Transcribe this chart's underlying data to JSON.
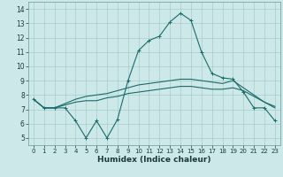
{
  "xlabel": "Humidex (Indice chaleur)",
  "bg_color": "#cce8e8",
  "grid_color": "#aacccc",
  "line_color": "#1a6b6b",
  "x": [
    0,
    1,
    2,
    3,
    4,
    5,
    6,
    7,
    8,
    9,
    10,
    11,
    12,
    13,
    14,
    15,
    16,
    17,
    18,
    19,
    20,
    21,
    22,
    23
  ],
  "line1": [
    7.7,
    7.1,
    7.1,
    7.1,
    6.2,
    5.0,
    6.2,
    5.0,
    6.3,
    9.0,
    11.1,
    11.8,
    12.1,
    13.1,
    13.7,
    13.2,
    11.0,
    9.5,
    9.2,
    9.1,
    8.2,
    7.1,
    7.1,
    6.2
  ],
  "line2": [
    7.7,
    7.1,
    7.1,
    7.3,
    7.5,
    7.6,
    7.6,
    7.8,
    7.9,
    8.1,
    8.2,
    8.3,
    8.4,
    8.5,
    8.6,
    8.6,
    8.5,
    8.4,
    8.4,
    8.5,
    8.3,
    7.9,
    7.5,
    7.2
  ],
  "line3": [
    7.7,
    7.1,
    7.1,
    7.4,
    7.7,
    7.9,
    8.0,
    8.1,
    8.3,
    8.5,
    8.7,
    8.8,
    8.9,
    9.0,
    9.1,
    9.1,
    9.0,
    8.9,
    8.8,
    9.0,
    8.5,
    8.0,
    7.5,
    7.1
  ],
  "ylim": [
    4.5,
    14.5
  ],
  "yticks": [
    5,
    6,
    7,
    8,
    9,
    10,
    11,
    12,
    13,
    14
  ],
  "xlim": [
    -0.5,
    23.5
  ],
  "xticks": [
    0,
    1,
    2,
    3,
    4,
    5,
    6,
    7,
    8,
    9,
    10,
    11,
    12,
    13,
    14,
    15,
    16,
    17,
    18,
    19,
    20,
    21,
    22,
    23
  ],
  "xtick_fontsize": 5.0,
  "ytick_fontsize": 5.5,
  "xlabel_fontsize": 6.5
}
